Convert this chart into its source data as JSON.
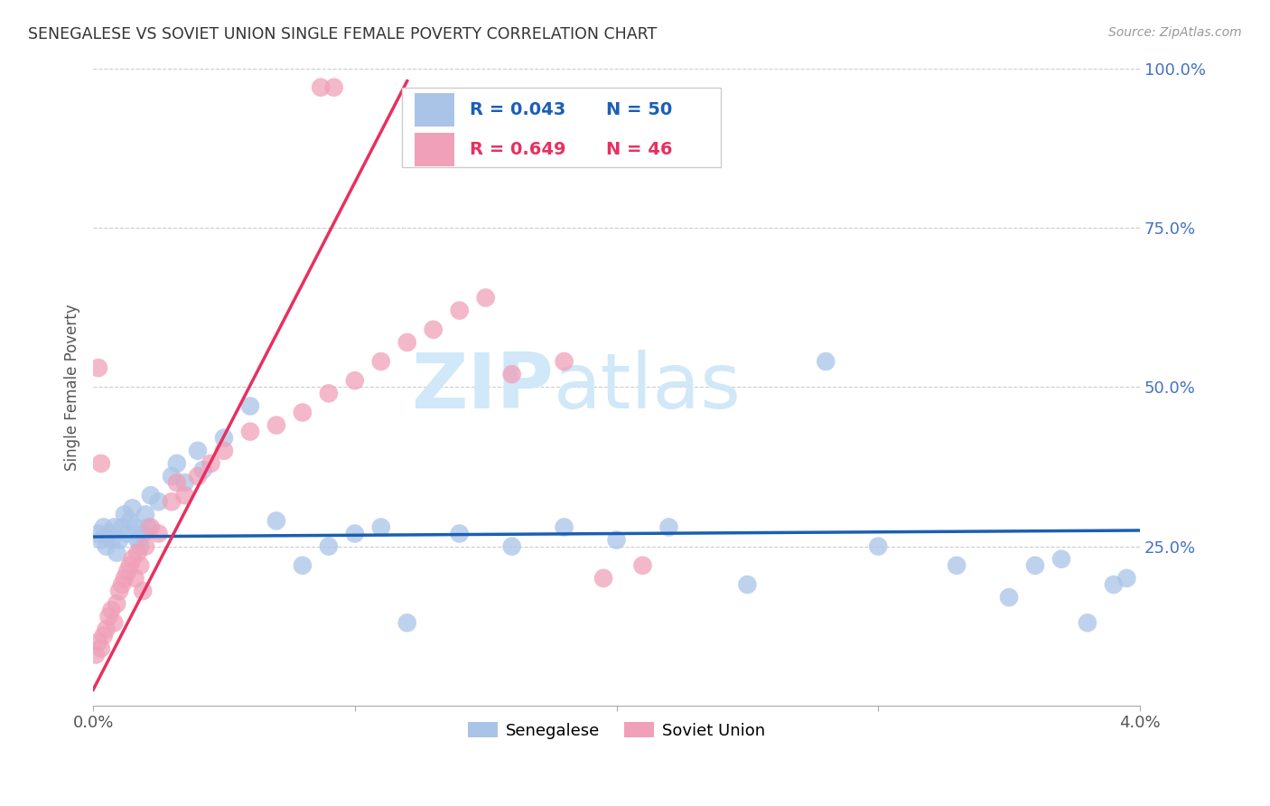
{
  "title": "SENEGALESE VS SOVIET UNION SINGLE FEMALE POVERTY CORRELATION CHART",
  "source": "Source: ZipAtlas.com",
  "ylabel": "Single Female Poverty",
  "xlim": [
    0.0,
    0.04
  ],
  "ylim": [
    0.0,
    1.0
  ],
  "yticks": [
    0.25,
    0.5,
    0.75,
    1.0
  ],
  "ytick_labels": [
    "25.0%",
    "50.0%",
    "75.0%",
    "100.0%"
  ],
  "xticks": [
    0.0,
    0.01,
    0.02,
    0.03,
    0.04
  ],
  "xtick_labels": [
    "0.0%",
    "",
    "",
    "",
    "4.0%"
  ],
  "senegalese_color": "#aac4e8",
  "soviet_color": "#f0a0b8",
  "senegalese_line_color": "#1a5fb4",
  "soviet_line_color": "#e83060",
  "watermark_zip": "ZIP",
  "watermark_atlas": "atlas",
  "watermark_color": "#d0e8f8",
  "background_color": "#ffffff",
  "sen_x": [
    0.0002,
    0.0003,
    0.0004,
    0.0005,
    0.0006,
    0.0007,
    0.0008,
    0.0009,
    0.001,
    0.0011,
    0.0012,
    0.0013,
    0.0014,
    0.0015,
    0.0016,
    0.0017,
    0.0018,
    0.0019,
    0.002,
    0.0021,
    0.0022,
    0.0025,
    0.003,
    0.0032,
    0.0035,
    0.004,
    0.0042,
    0.005,
    0.006,
    0.007,
    0.008,
    0.009,
    0.01,
    0.011,
    0.012,
    0.014,
    0.016,
    0.018,
    0.02,
    0.022,
    0.025,
    0.028,
    0.03,
    0.033,
    0.035,
    0.036,
    0.037,
    0.038,
    0.039,
    0.0395
  ],
  "sen_y": [
    0.27,
    0.26,
    0.28,
    0.25,
    0.27,
    0.26,
    0.28,
    0.24,
    0.26,
    0.28,
    0.3,
    0.27,
    0.29,
    0.31,
    0.28,
    0.26,
    0.25,
    0.27,
    0.3,
    0.28,
    0.33,
    0.32,
    0.36,
    0.38,
    0.35,
    0.4,
    0.37,
    0.42,
    0.47,
    0.29,
    0.22,
    0.25,
    0.27,
    0.28,
    0.13,
    0.27,
    0.25,
    0.28,
    0.26,
    0.28,
    0.19,
    0.54,
    0.25,
    0.22,
    0.17,
    0.22,
    0.23,
    0.13,
    0.19,
    0.2
  ],
  "sov_x": [
    0.0001,
    0.0002,
    0.0003,
    0.0004,
    0.0005,
    0.0006,
    0.0007,
    0.0008,
    0.0009,
    0.001,
    0.0011,
    0.0012,
    0.0013,
    0.0014,
    0.0015,
    0.0016,
    0.0017,
    0.0018,
    0.0019,
    0.002,
    0.0022,
    0.0025,
    0.003,
    0.0032,
    0.0035,
    0.004,
    0.0045,
    0.005,
    0.006,
    0.007,
    0.008,
    0.009,
    0.01,
    0.011,
    0.012,
    0.013,
    0.014,
    0.015,
    0.016,
    0.018,
    0.0195,
    0.021,
    0.0087,
    0.0092,
    0.0002,
    0.0003
  ],
  "sov_y": [
    0.08,
    0.1,
    0.09,
    0.11,
    0.12,
    0.14,
    0.15,
    0.13,
    0.16,
    0.18,
    0.19,
    0.2,
    0.21,
    0.22,
    0.23,
    0.2,
    0.24,
    0.22,
    0.18,
    0.25,
    0.28,
    0.27,
    0.32,
    0.35,
    0.33,
    0.36,
    0.38,
    0.4,
    0.43,
    0.44,
    0.46,
    0.49,
    0.51,
    0.54,
    0.57,
    0.59,
    0.62,
    0.64,
    0.52,
    0.54,
    0.2,
    0.22,
    0.97,
    0.97,
    0.53,
    0.38
  ],
  "sen_line_x": [
    0.0,
    0.04
  ],
  "sen_line_y": [
    0.265,
    0.275
  ],
  "sov_line_x": [
    0.0,
    0.012
  ],
  "sov_line_y": [
    0.025,
    0.98
  ],
  "legend_R_sen": "R = 0.043",
  "legend_N_sen": "N = 50",
  "legend_R_sov": "R = 0.649",
  "legend_N_sov": "N = 46"
}
